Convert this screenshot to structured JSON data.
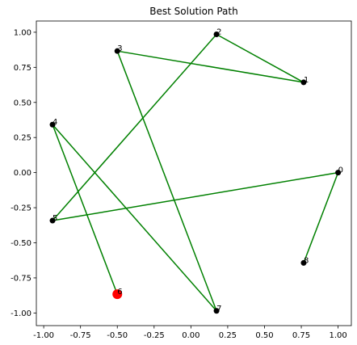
{
  "chart_data": {
    "type": "line",
    "title": "Best Solution Path",
    "xlabel": "",
    "ylabel": "",
    "xlim": [
      -1.05,
      1.09
    ],
    "ylim": [
      -1.09,
      1.08
    ],
    "grid": false,
    "x_ticks": [
      -1.0,
      -0.75,
      -0.5,
      -0.25,
      0.0,
      0.25,
      0.5,
      0.75,
      1.0
    ],
    "x_tick_labels": [
      "-1.00",
      "-0.75",
      "-0.50",
      "-0.25",
      "0.00",
      "0.25",
      "0.50",
      "0.75",
      "1.00"
    ],
    "y_ticks": [
      -1.0,
      -0.75,
      -0.5,
      -0.25,
      0.0,
      0.25,
      0.5,
      0.75,
      1.0
    ],
    "y_tick_labels": [
      "-1.00",
      "-0.75",
      "-0.50",
      "-0.25",
      "0.00",
      "0.25",
      "0.50",
      "0.75",
      "1.00"
    ],
    "points": [
      {
        "label": "0",
        "x": 1.0,
        "y": 0.0
      },
      {
        "label": "1",
        "x": 0.766,
        "y": 0.643
      },
      {
        "label": "2",
        "x": 0.174,
        "y": 0.985
      },
      {
        "label": "3",
        "x": -0.5,
        "y": 0.866
      },
      {
        "label": "4",
        "x": -0.94,
        "y": 0.342
      },
      {
        "label": "5",
        "x": -0.94,
        "y": -0.342
      },
      {
        "label": "6",
        "x": -0.5,
        "y": -0.866
      },
      {
        "label": "7",
        "x": 0.174,
        "y": -0.985
      },
      {
        "label": "8",
        "x": 0.766,
        "y": -0.643
      }
    ],
    "path_order": [
      6,
      4,
      7,
      3,
      1,
      2,
      5,
      0,
      8
    ],
    "start_point": 6,
    "colors": {
      "path": "#008000",
      "point": "#000000",
      "start": "#ff0000",
      "axis": "#000000"
    }
  }
}
